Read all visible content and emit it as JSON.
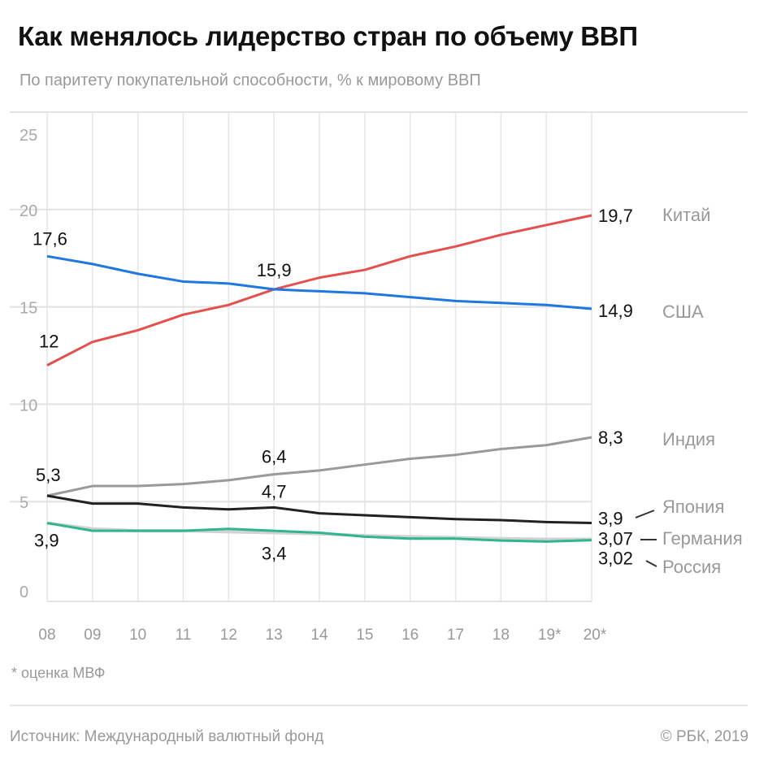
{
  "header": {
    "title": "Как менялось лидерство стран по объему ВВП",
    "subtitle": "По паритету покупательной способности, % к мировому ВВП"
  },
  "footer": {
    "note": "* оценка МВФ",
    "source": "Источник: Международный валютный фонд",
    "copyright": "© РБК, 2019"
  },
  "chart_data": {
    "type": "line",
    "title": "Как менялось лидерство стран по объему ВВП",
    "subtitle": "По паритету покупательной способности, % к мировому ВВП",
    "categories": [
      "08",
      "09",
      "10",
      "11",
      "12",
      "13",
      "14",
      "15",
      "16",
      "17",
      "18",
      "19*",
      "20*"
    ],
    "ylim": [
      0,
      25
    ],
    "yticks": [
      0,
      5,
      10,
      15,
      20,
      25
    ],
    "grid": true,
    "series": [
      {
        "name": "Китай",
        "color": "#e5504f",
        "values": [
          12,
          13.2,
          13.8,
          14.6,
          15.1,
          15.9,
          16.5,
          16.9,
          17.6,
          18.1,
          18.7,
          19.2,
          19.7
        ]
      },
      {
        "name": "США",
        "color": "#1f77e0",
        "values": [
          17.6,
          17.2,
          16.7,
          16.3,
          16.2,
          15.9,
          15.8,
          15.7,
          15.5,
          15.3,
          15.2,
          15.1,
          14.9
        ]
      },
      {
        "name": "Индия",
        "color": "#9a9a9a",
        "values": [
          5.3,
          5.8,
          5.8,
          5.9,
          6.1,
          6.4,
          6.6,
          6.9,
          7.2,
          7.4,
          7.7,
          7.9,
          8.3
        ]
      },
      {
        "name": "Япония",
        "color": "#222222",
        "values": [
          5.3,
          4.9,
          4.9,
          4.7,
          4.6,
          4.7,
          4.4,
          4.3,
          4.2,
          4.1,
          4.05,
          3.95,
          3.9
        ]
      },
      {
        "name": "Германия",
        "color": "#d2d2d2",
        "values": [
          3.9,
          3.6,
          3.5,
          3.5,
          3.45,
          3.4,
          3.35,
          3.25,
          3.2,
          3.15,
          3.1,
          3.07,
          3.07
        ]
      },
      {
        "name": "Россия",
        "color": "#2fb58f",
        "values": [
          3.9,
          3.5,
          3.5,
          3.5,
          3.6,
          3.5,
          3.4,
          3.2,
          3.1,
          3.1,
          3.0,
          2.95,
          3.02
        ]
      }
    ],
    "annotations": [
      {
        "series": "США",
        "x": "08",
        "text": "17,6"
      },
      {
        "series": "Китай",
        "x": "08",
        "text": "12"
      },
      {
        "series": "Китай",
        "x": "13",
        "text": "15,9"
      },
      {
        "series": "Китай",
        "x": "20*",
        "text": "19,7"
      },
      {
        "series": "США",
        "x": "20*",
        "text": "14,9"
      },
      {
        "series": "Индия",
        "x": "08",
        "text": "5,3"
      },
      {
        "series": "Индия",
        "x": "13",
        "text": "6,4"
      },
      {
        "series": "Индия",
        "x": "20*",
        "text": "8,3"
      },
      {
        "series": "Япония",
        "x": "13",
        "text": "4,7"
      },
      {
        "series": "Япония",
        "x": "20*",
        "text": "3,9"
      },
      {
        "series": "Германия",
        "x": "08",
        "text": "3,9"
      },
      {
        "series": "Германия",
        "x": "13",
        "text": "3,4"
      },
      {
        "series": "Германия",
        "x": "20*",
        "text": "3,07"
      },
      {
        "series": "Россия",
        "x": "20*",
        "text": "3,02"
      }
    ]
  }
}
